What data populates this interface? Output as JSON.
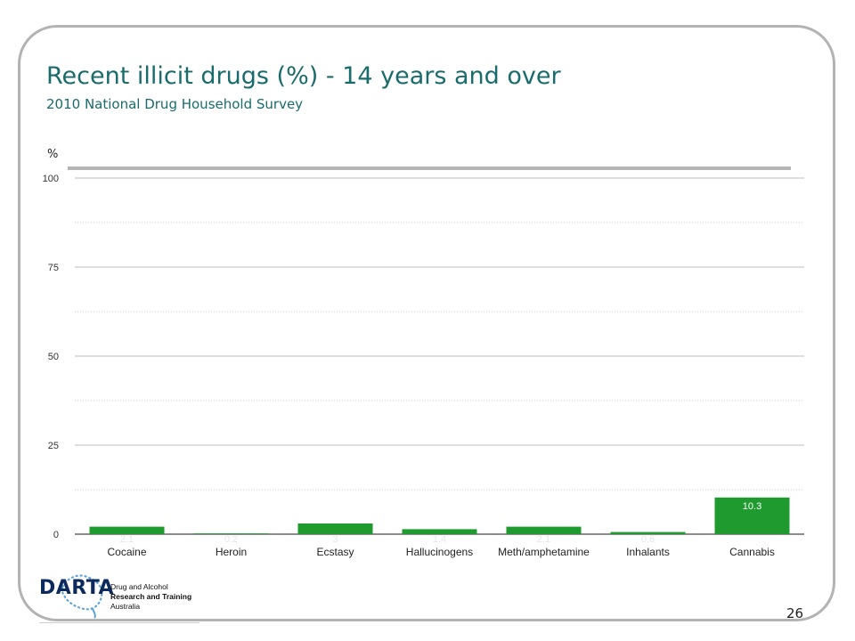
{
  "slide": {
    "title": "Recent illicit drugs (%) - 14 years and over",
    "subtitle": "2010 National Drug Household Survey",
    "unit_label": "%",
    "page_number": "26"
  },
  "logo": {
    "wordmark": "DARTA",
    "line1": "Drug and Alcohol",
    "line2": "Research and Training",
    "line3": "Australia"
  },
  "colors": {
    "bar": "#1f9a2f",
    "title": "#1a6b6b",
    "grid": "#bdbdbd"
  },
  "chart_data": {
    "type": "bar",
    "categories": [
      "Cocaine",
      "Heroin",
      "Ecstasy",
      "Hallucinogens",
      "Meth/amphetamine",
      "Inhalants",
      "Cannabis"
    ],
    "values": [
      2.1,
      0.2,
      3,
      1.4,
      2.1,
      0.6,
      10.3
    ],
    "value_labels": [
      "2.1",
      "0.2",
      "3",
      "1.4",
      "2.1",
      "0.6",
      "10.3"
    ],
    "ylim": [
      0,
      100
    ],
    "yticks": [
      0,
      25,
      50,
      75,
      100
    ],
    "ylabel": "%",
    "grid": true
  }
}
